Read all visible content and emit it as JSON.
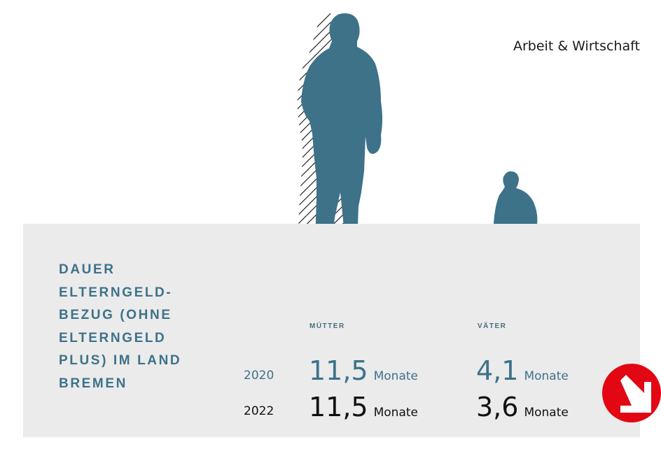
{
  "header": {
    "category": "Arbeit & Wirtschaft"
  },
  "infographic": {
    "title_lines": [
      "DAUER",
      "ELTERNGELD-",
      "BEZUG (OHNE",
      "ELTERNGELD",
      "PLUS) IM LAND",
      "BREMEN"
    ],
    "columns": [
      "MÜTTER",
      "VÄTER"
    ],
    "rows": [
      {
        "year": "2020",
        "values": [
          {
            "num": "11,5",
            "unit": "Monate"
          },
          {
            "num": "4,1",
            "unit": "Monate"
          }
        ]
      },
      {
        "year": "2022",
        "values": [
          {
            "num": "11,5",
            "unit": "Monate"
          },
          {
            "num": "3,6",
            "unit": "Monate"
          }
        ]
      }
    ],
    "trend_icon": "arrow-down-right-icon",
    "colors": {
      "accent": "#3d7289",
      "panel": "#ebebeb",
      "badge": "#e30613"
    }
  }
}
